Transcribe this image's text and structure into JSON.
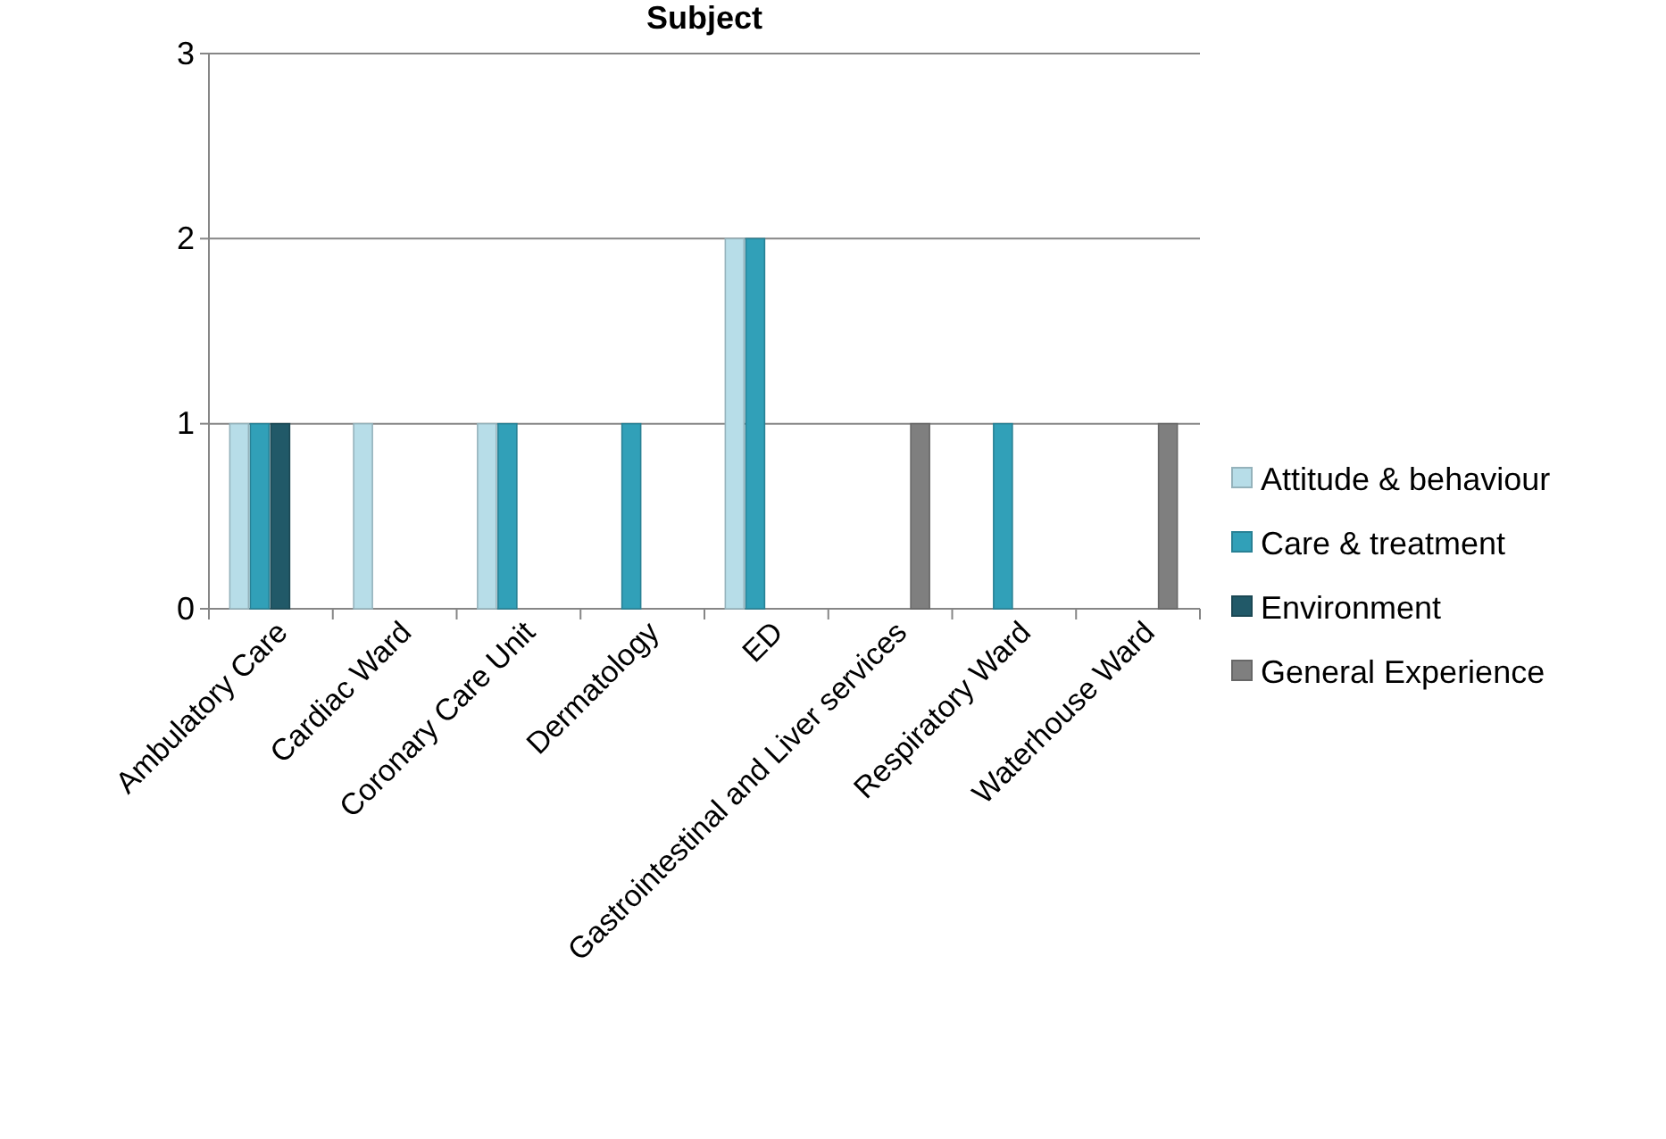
{
  "chart_data": {
    "type": "bar",
    "title": "Subject",
    "categories": [
      "Ambulatory Care",
      "Cardiac Ward",
      "Coronary Care Unit",
      "Dermatology",
      "ED",
      "Gastrointestinal and Liver services",
      "Respiratory Ward",
      "Waterhouse Ward"
    ],
    "series": [
      {
        "name": "Attitude & behaviour",
        "color": "#b7dde8",
        "values": [
          1,
          1,
          1,
          null,
          2,
          null,
          null,
          null
        ]
      },
      {
        "name": "Care & treatment",
        "color": "#31a0b8",
        "values": [
          1,
          null,
          1,
          1,
          2,
          null,
          1,
          null
        ]
      },
      {
        "name": "Environment",
        "color": "#215968",
        "values": [
          1,
          null,
          null,
          null,
          null,
          null,
          null,
          null
        ]
      },
      {
        "name": "General Experience",
        "color": "#7f7f7f",
        "values": [
          null,
          null,
          null,
          null,
          null,
          1,
          null,
          1
        ]
      }
    ],
    "ylim": [
      0,
      3
    ],
    "yticks": [
      0,
      1,
      2,
      3
    ],
    "grid": "y",
    "legend": "right"
  }
}
